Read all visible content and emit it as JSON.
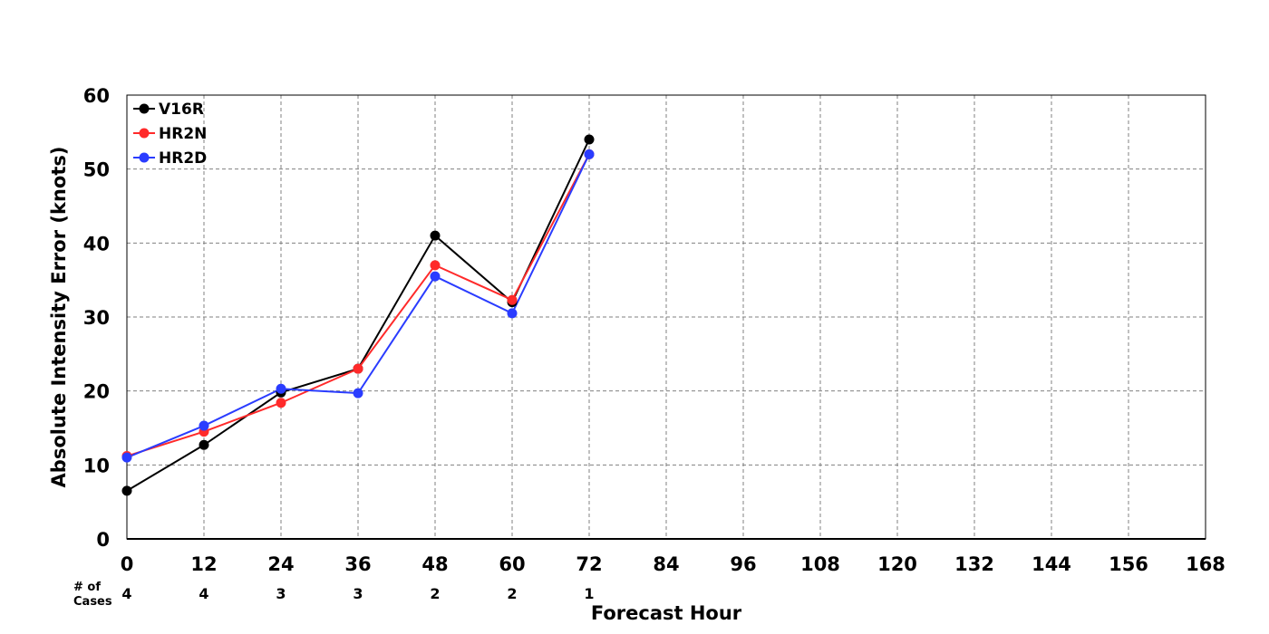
{
  "chart_data": {
    "type": "line",
    "xlabel": "Forecast Hour",
    "ylabel": "Absolute Intensity Error (knots)",
    "xlim": [
      0,
      168
    ],
    "ylim": [
      0,
      60
    ],
    "x_ticks": [
      0,
      12,
      24,
      36,
      48,
      60,
      72,
      84,
      96,
      108,
      120,
      132,
      144,
      156,
      168
    ],
    "y_ticks": [
      0,
      10,
      20,
      30,
      40,
      50,
      60
    ],
    "grid": true,
    "legend_position": "top-left",
    "x": [
      0,
      12,
      24,
      36,
      48,
      60,
      72
    ],
    "series": [
      {
        "name": "V16R",
        "color": "#000000",
        "values": [
          6.5,
          12.7,
          19.8,
          23.0,
          41.0,
          32.0,
          54.0
        ]
      },
      {
        "name": "HR2N",
        "color": "#ff2a2a",
        "values": [
          11.2,
          14.5,
          18.4,
          23.0,
          37.0,
          32.3,
          52.0
        ]
      },
      {
        "name": "HR2D",
        "color": "#2a3cff",
        "values": [
          11.0,
          15.3,
          20.3,
          19.7,
          35.5,
          30.5,
          52.0
        ]
      }
    ],
    "cases_label_line1": "# of",
    "cases_label_line2": "Cases",
    "cases": [
      4,
      4,
      3,
      3,
      2,
      2,
      1
    ]
  }
}
